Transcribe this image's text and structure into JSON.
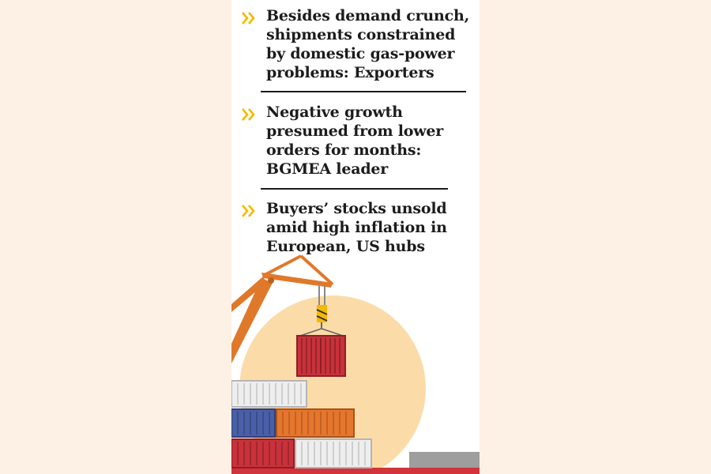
{
  "bullets": [
    {
      "text": "Besides demand crunch,\nshipments constrained\nby domestic gas-power\nproblems: Exporters"
    },
    {
      "text": "Negative growth\npresumed from lower\norders for months:\nBGMEA leader"
    },
    {
      "text": "Buyers’ stocks unsold\namid high inflation in\nEuropean, US hubs"
    }
  ],
  "colors": {
    "page_background": "#fdf1e5",
    "chevron": "#f5b800",
    "sun": "#fbdca8",
    "crane": "#e0782a",
    "container_red": "#c8323a",
    "container_blue": "#4a5fa8",
    "container_orange": "#e5762d",
    "container_white": "#eeeeee"
  },
  "icons": {
    "bullet": "double-chevron-right-icon"
  },
  "illustration": "crane-lifting-container-with-stacked-containers"
}
